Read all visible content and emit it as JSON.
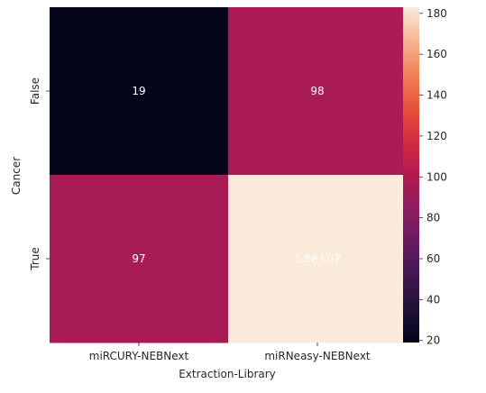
{
  "chart_data": {
    "type": "heatmap",
    "xlabel": "Extraction-Library",
    "ylabel": "Cancer",
    "x_categories": [
      "miRCURY-NEBNext",
      "miRNeasy-NEBNext"
    ],
    "y_categories": [
      "False",
      "True"
    ],
    "values": [
      [
        19,
        98
      ],
      [
        97,
        183
      ]
    ],
    "annotations": [
      [
        "19",
        "98"
      ],
      [
        "97",
        "1.8e+02"
      ]
    ],
    "colormap": "rocket",
    "colorbar": {
      "range": [
        19,
        183
      ],
      "ticks": [
        20,
        40,
        60,
        80,
        100,
        120,
        140,
        160,
        180
      ]
    },
    "annotation_color": "#ffffff",
    "grid": false
  }
}
